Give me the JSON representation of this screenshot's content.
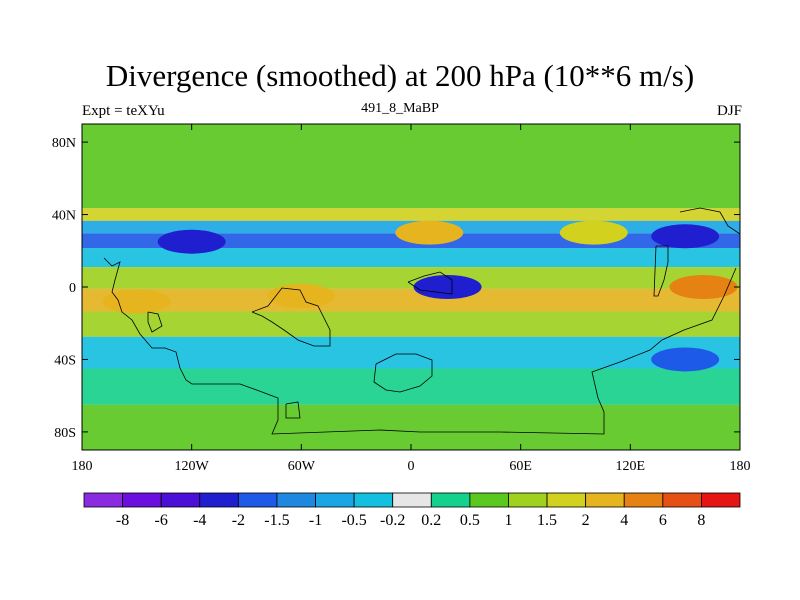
{
  "title": "Divergence (smoothed) at 200 hPa (10**6 m/s)",
  "subtitle_left": "Expt = teXYu",
  "subtitle_center": "491_8_MaBP",
  "subtitle_right": "DJF",
  "map": {
    "projection": "equirectangular",
    "lon_range": [
      -180,
      180
    ],
    "lat_range": [
      -90,
      90
    ],
    "background_color": "#e6e6e6"
  },
  "axes": {
    "y_ticks": [
      {
        "value": 80,
        "label": "80N"
      },
      {
        "value": 40,
        "label": "40N"
      },
      {
        "value": 0,
        "label": "0"
      },
      {
        "value": -40,
        "label": "40S"
      },
      {
        "value": -80,
        "label": "80S"
      }
    ],
    "x_ticks": [
      {
        "value": -180,
        "label": "180"
      },
      {
        "value": -120,
        "label": "120W"
      },
      {
        "value": -60,
        "label": "60W"
      },
      {
        "value": 0,
        "label": "0"
      },
      {
        "value": 60,
        "label": "60E"
      },
      {
        "value": 120,
        "label": "120E"
      },
      {
        "value": 180,
        "label": "180"
      }
    ]
  },
  "colorbar": {
    "colors": [
      "#8a2be2",
      "#6a0fe0",
      "#4b0fd8",
      "#1f1fd0",
      "#1e5ae8",
      "#1e88e0",
      "#1aa6e6",
      "#14c0e0",
      "#e6e6e6",
      "#14d28c",
      "#5ac81e",
      "#9ed21e",
      "#d2d21e",
      "#e6b41e",
      "#e68214",
      "#e65014",
      "#e61414"
    ],
    "labels": [
      "-8",
      "-6",
      "-4",
      "-2",
      "-1.5",
      "-1",
      "-0.5",
      "-0.2",
      "0.2",
      "0.5",
      "1",
      "1.5",
      "2",
      "4",
      "6",
      "8"
    ]
  },
  "field_bands": [
    {
      "lat": 47,
      "value": 0.5
    },
    {
      "lat": 40,
      "value": 1.5
    },
    {
      "lat": 33,
      "value": -0.8
    },
    {
      "lat": 26,
      "value": -2
    },
    {
      "lat": 17,
      "value": -0.5
    },
    {
      "lat": 5,
      "value": 1.2
    },
    {
      "lat": -7,
      "value": 3
    },
    {
      "lat": -20,
      "value": 1
    },
    {
      "lat": -35,
      "value": -0.5
    },
    {
      "lat": -55,
      "value": 0.4
    },
    {
      "lat": -75,
      "value": 0.5
    }
  ],
  "field_blobs": [
    {
      "lon": -60,
      "lat": -5,
      "value": 3.5
    },
    {
      "lon": -150,
      "lat": -8,
      "value": 3
    },
    {
      "lon": 160,
      "lat": 0,
      "value": 5
    },
    {
      "lon": 20,
      "lat": 0,
      "value": -3
    },
    {
      "lon": 150,
      "lat": 28,
      "value": -3
    },
    {
      "lon": -120,
      "lat": 25,
      "value": -2.5
    },
    {
      "lon": 10,
      "lat": 30,
      "value": 2.5
    },
    {
      "lon": 100,
      "lat": 30,
      "value": 1.5
    },
    {
      "lon": 150,
      "lat": -40,
      "value": -2
    }
  ]
}
